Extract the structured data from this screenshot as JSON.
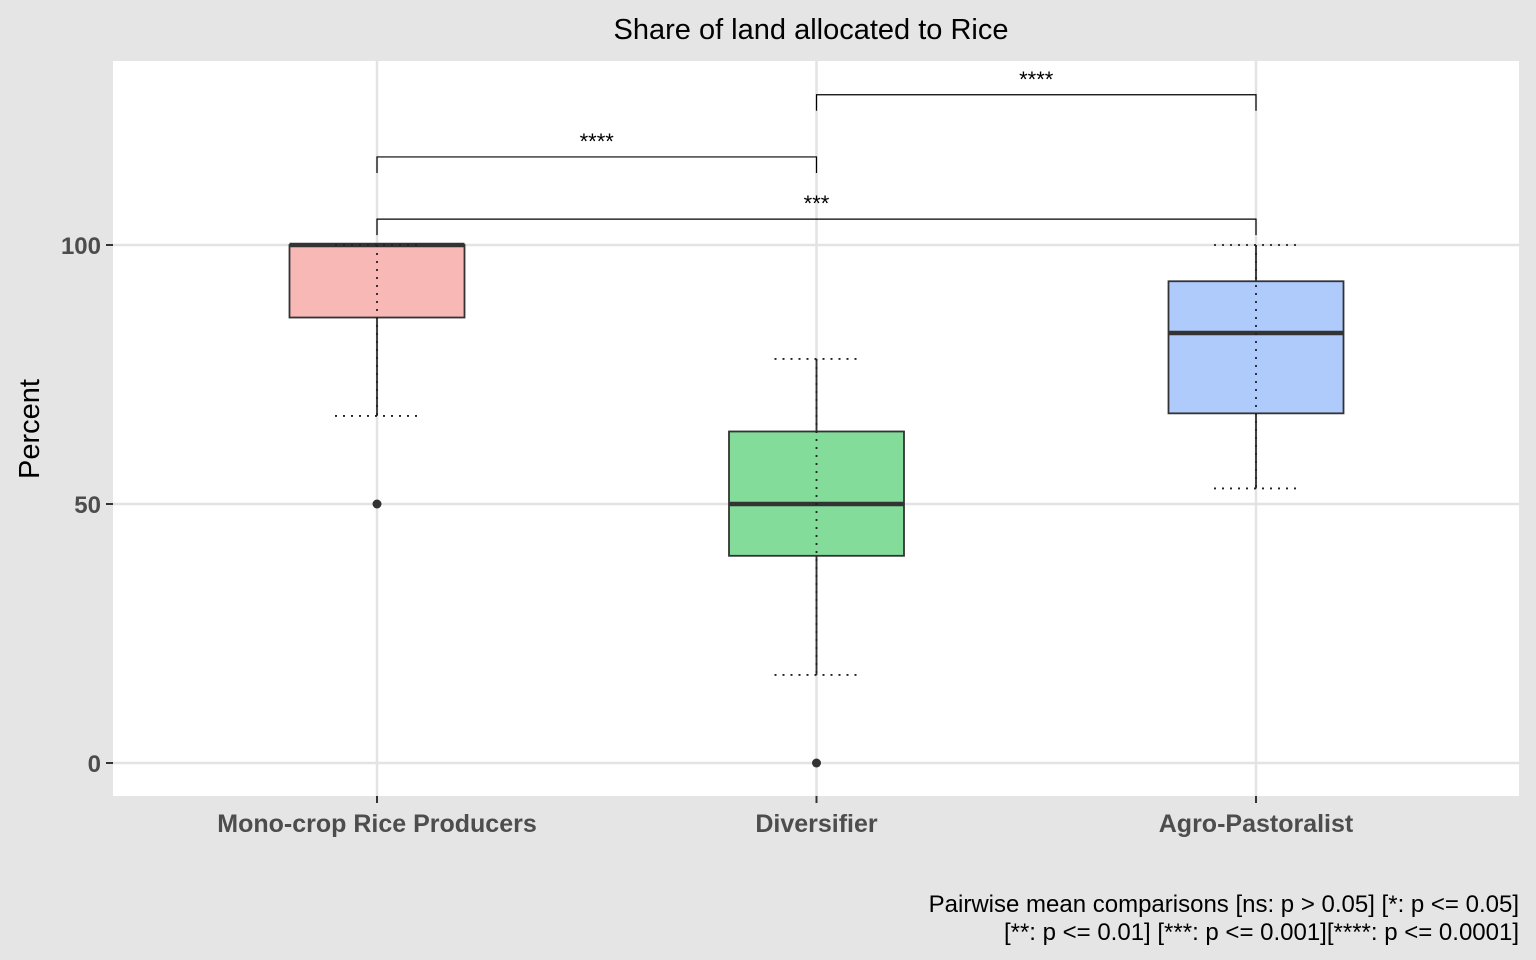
{
  "chart_data": {
    "type": "box",
    "title": "Share of land allocated to Rice",
    "xlabel": "",
    "ylabel": "Percent",
    "ylim": [
      -6,
      136
    ],
    "yticks": [
      0,
      50,
      100
    ],
    "ytick_labels": [
      "0",
      "50",
      "100"
    ],
    "grid": true,
    "categories": [
      "Mono-crop Rice Producers",
      "Diversifier",
      "Agro-Pastoralist"
    ],
    "boxes": [
      {
        "category": "Mono-crop Rice Producers",
        "q1": 86,
        "median": 100,
        "q3": 100,
        "whisker_low": 67,
        "whisker_high": 100,
        "outliers": [
          50
        ],
        "mean_minus_sd": 67,
        "mean_plus_sd": 100,
        "color": "#f8b8b6"
      },
      {
        "category": "Diversifier",
        "q1": 40,
        "median": 50,
        "q3": 64,
        "whisker_low": 17,
        "whisker_high": 78,
        "outliers": [
          0
        ],
        "mean_minus_sd": 17,
        "mean_plus_sd": 78,
        "color": "#83dc9a"
      },
      {
        "category": "Agro-Pastoralist",
        "q1": 67.5,
        "median": 83,
        "q3": 93,
        "whisker_low": 53,
        "whisker_high": 100,
        "outliers": [],
        "mean_minus_sd": 53,
        "mean_plus_sd": 100,
        "color": "#aecbfc"
      }
    ],
    "comparisons": [
      {
        "from": 0,
        "to": 1,
        "label": "****",
        "y": 117
      },
      {
        "from": 1,
        "to": 2,
        "label": "****",
        "y": 129
      },
      {
        "from": 0,
        "to": 2,
        "label": "***",
        "y": 105
      }
    ],
    "caption": [
      "Pairwise mean comparisons [ns: p > 0.05] [*: p <= 0.05]",
      "[**: p <= 0.01] [***: p <= 0.001][****: p <= 0.0001]"
    ]
  }
}
